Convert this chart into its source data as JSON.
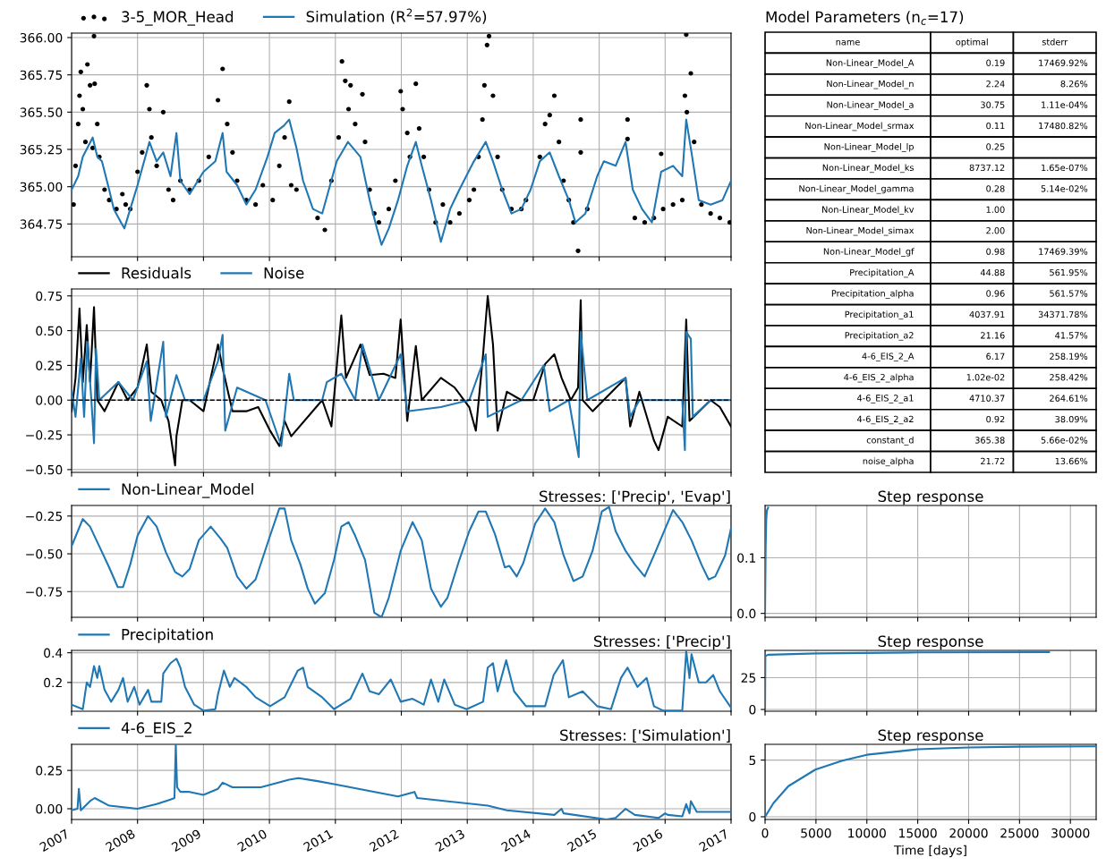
{
  "chart_data": [
    {
      "type": "line",
      "legend": "top left",
      "grid": true,
      "tick_labels": "y",
      "xlim": [
        2007,
        2017
      ],
      "xticks": [
        2007,
        2008,
        2009,
        2010,
        2011,
        2012,
        2013,
        2014,
        2015,
        2016,
        2017
      ],
      "ylim": [
        364.53,
        366.03
      ],
      "yticks": [
        {
          "value": 364.75,
          "label": "364.75"
        },
        {
          "value": 365,
          "label": "365.00"
        },
        {
          "value": 365.25,
          "label": "365.25"
        },
        {
          "value": 365.5,
          "label": "365.50"
        },
        {
          "value": 365.75,
          "label": "365.75"
        },
        {
          "value": 366,
          "label": "366.00"
        }
      ],
      "series": [
        {
          "name": "3-5_MOR_Head",
          "type": "scatter",
          "marker": "circle",
          "color": "#000000",
          "x": [
            2007.03,
            2007.06,
            2007.1,
            2007.12,
            2007.14,
            2007.17,
            2007.21,
            2007.24,
            2007.28,
            2007.32,
            2007.34,
            2007.35,
            2007.39,
            2007.42,
            2007.5,
            2007.57,
            2007.68,
            2007.77,
            2007.82,
            2007.89,
            2008.0,
            2008.07,
            2008.14,
            2008.18,
            2008.21,
            2008.29,
            2008.39,
            2008.47,
            2008.54,
            2008.65,
            2008.79,
            2008.93,
            2009.08,
            2009.22,
            2009.29,
            2009.36,
            2009.44,
            2009.51,
            2009.65,
            2009.79,
            2009.9,
            2010.05,
            2010.15,
            2010.23,
            2010.3,
            2010.33,
            2010.41,
            2010.73,
            2010.84,
            2010.94,
            2011.05,
            2011.1,
            2011.15,
            2011.2,
            2011.23,
            2011.3,
            2011.41,
            2011.45,
            2011.52,
            2011.59,
            2011.66,
            2011.81,
            2011.91,
            2011.99,
            2012.02,
            2012.09,
            2012.13,
            2012.22,
            2012.27,
            2012.34,
            2012.42,
            2012.52,
            2012.63,
            2012.74,
            2012.88,
            2013.03,
            2013.1,
            2013.17,
            2013.23,
            2013.26,
            2013.3,
            2013.33,
            2013.39,
            2013.46,
            2013.53,
            2013.67,
            2013.82,
            2013.89,
            2014.1,
            2014.18,
            2014.25,
            2014.32,
            2014.39,
            2014.46,
            2014.54,
            2014.61,
            2014.68,
            2014.72,
            2014.72,
            2014.82,
            2015.43,
            2015.43,
            2015.54,
            2015.69,
            2015.83,
            2015.94,
            2015.97,
            2016.12,
            2016.26,
            2016.3,
            2016.32,
            2016.33,
            2016.39,
            2016.44,
            2016.55,
            2016.69,
            2016.83,
            2016.98
          ],
          "values": [
            364.88,
            365.14,
            365.42,
            365.61,
            365.77,
            365.52,
            365.3,
            365.82,
            365.68,
            365.26,
            366.01,
            365.69,
            365.42,
            365.2,
            364.98,
            364.91,
            364.85,
            364.95,
            364.88,
            364.85,
            365.1,
            365.23,
            365.68,
            365.52,
            365.33,
            365.14,
            365.5,
            364.98,
            364.91,
            365.04,
            364.98,
            365.04,
            365.2,
            365.58,
            365.79,
            365.42,
            365.23,
            365.04,
            364.91,
            364.88,
            365.01,
            364.91,
            365.14,
            365.33,
            365.57,
            365.01,
            364.98,
            364.79,
            364.71,
            365.04,
            365.33,
            365.84,
            365.71,
            365.52,
            365.68,
            365.42,
            365.62,
            365.3,
            364.98,
            364.82,
            364.76,
            364.85,
            365.04,
            365.64,
            365.52,
            365.36,
            365.2,
            365.69,
            365.39,
            365.2,
            364.98,
            364.76,
            364.88,
            364.76,
            364.82,
            364.91,
            364.98,
            365.2,
            365.45,
            365.68,
            365.95,
            366.01,
            365.61,
            365.2,
            364.98,
            364.85,
            364.85,
            364.91,
            365.2,
            365.42,
            365.48,
            365.61,
            365.3,
            365.04,
            364.91,
            364.76,
            364.57,
            365.45,
            365.23,
            364.85,
            365.45,
            365.32,
            364.79,
            364.76,
            364.79,
            365.22,
            364.85,
            364.88,
            364.91,
            365.61,
            366.02,
            365.5,
            365.76,
            365.3,
            364.88,
            364.82,
            364.79,
            364.76
          ]
        },
        {
          "name": "Simulation (R$^{2}$=57.97%)",
          "type": "line",
          "color": "#1f77b4",
          "x": [
            2007.0,
            2007.1,
            2007.17,
            2007.32,
            2007.39,
            2007.46,
            2007.57,
            2007.64,
            2007.75,
            2007.8,
            2007.89,
            2008.0,
            2008.18,
            2008.29,
            2008.39,
            2008.5,
            2008.59,
            2008.65,
            2008.79,
            2009.0,
            2009.18,
            2009.29,
            2009.35,
            2009.51,
            2009.65,
            2009.79,
            2009.97,
            2010.08,
            2010.22,
            2010.3,
            2010.41,
            2010.51,
            2010.66,
            2010.8,
            2011.02,
            2011.19,
            2011.38,
            2011.52,
            2011.63,
            2011.7,
            2011.81,
            2011.95,
            2012.09,
            2012.22,
            2012.31,
            2012.45,
            2012.6,
            2012.74,
            2012.88,
            2013.1,
            2013.28,
            2013.39,
            2013.53,
            2013.67,
            2013.82,
            2013.96,
            2014.1,
            2014.25,
            2014.39,
            2014.54,
            2014.64,
            2014.79,
            2014.97,
            2015.07,
            2015.25,
            2015.4,
            2015.51,
            2015.65,
            2015.8,
            2015.94,
            2016.12,
            2016.26,
            2016.32,
            2016.4,
            2016.51,
            2016.69,
            2016.87,
            2017.0
          ],
          "values": [
            364.98,
            365.07,
            365.2,
            365.33,
            365.2,
            365.17,
            364.98,
            364.85,
            364.76,
            364.72,
            364.85,
            365.01,
            365.3,
            365.17,
            365.23,
            365.07,
            365.36,
            365.04,
            364.95,
            365.1,
            365.17,
            365.36,
            365.1,
            365.01,
            364.88,
            364.98,
            365.2,
            365.36,
            365.41,
            365.45,
            365.26,
            365.04,
            364.85,
            364.82,
            365.17,
            365.3,
            365.2,
            364.91,
            364.72,
            364.61,
            364.72,
            364.91,
            365.14,
            365.3,
            365.14,
            364.91,
            364.63,
            364.85,
            364.98,
            365.17,
            365.3,
            365.17,
            364.98,
            364.82,
            364.85,
            364.98,
            365.17,
            365.23,
            365.07,
            364.91,
            364.76,
            364.82,
            365.07,
            365.17,
            365.14,
            365.3,
            364.98,
            364.85,
            364.76,
            365.1,
            365.14,
            365.07,
            365.45,
            365.23,
            364.91,
            364.88,
            364.91,
            365.04
          ]
        }
      ]
    },
    {
      "type": "other",
      "title": "Model Parameters (n$_{c}$=17)",
      "categories": [
        "name",
        "optimal",
        "stderr"
      ],
      "cell_labels": [
        [
          "Non-Linear_Model_A",
          "0.19",
          "17469.92%"
        ],
        [
          "Non-Linear_Model_n",
          "2.24",
          "8.26%"
        ],
        [
          "Non-Linear_Model_a",
          "30.75",
          "1.11e-04%"
        ],
        [
          "Non-Linear_Model_srmax",
          "0.11",
          "17480.82%"
        ],
        [
          "Non-Linear_Model_lp",
          "0.25",
          null
        ],
        [
          "Non-Linear_Model_ks",
          "8737.12",
          "1.65e-07%"
        ],
        [
          "Non-Linear_Model_gamma",
          "0.28",
          "5.14e-02%"
        ],
        [
          "Non-Linear_Model_kv",
          "1.00",
          null
        ],
        [
          "Non-Linear_Model_simax",
          "2.00",
          null
        ],
        [
          "Non-Linear_Model_gf",
          "0.98",
          "17469.39%"
        ],
        [
          "Precipitation_A",
          "44.88",
          "561.95%"
        ],
        [
          "Precipitation_alpha",
          "0.96",
          "561.57%"
        ],
        [
          "Precipitation_a1",
          "4037.91",
          "34371.78%"
        ],
        [
          "Precipitation_a2",
          "21.16",
          "41.57%"
        ],
        [
          "4-6_EIS_2_A",
          "6.17",
          "258.19%"
        ],
        [
          "4-6_EIS_2_alpha",
          "1.02e-02",
          "258.42%"
        ],
        [
          "4-6_EIS_2_a1",
          "4710.37",
          "264.61%"
        ],
        [
          "4-6_EIS_2_a2",
          "0.92",
          "38.09%"
        ],
        [
          "constant_d",
          "365.38",
          "5.66e-02%"
        ],
        [
          "noise_alpha",
          "21.72",
          "13.66%"
        ]
      ]
    },
    {
      "type": "line",
      "legend": "top left",
      "grid": true,
      "tick_labels": "y",
      "xlim": [
        2007,
        2017
      ],
      "xticks": [
        2007,
        2008,
        2009,
        2010,
        2011,
        2012,
        2013,
        2014,
        2015,
        2016,
        2017
      ],
      "ylim": [
        -0.52,
        0.8
      ],
      "yticks": [
        {
          "value": -0.5,
          "label": "−0.50"
        },
        {
          "value": -0.25,
          "label": "−0.25"
        },
        {
          "value": 0,
          "label": "0.00"
        },
        {
          "value": 0.25,
          "label": "0.25"
        },
        {
          "value": 0.5,
          "label": "0.50"
        },
        {
          "value": 0.75,
          "label": "0.75"
        }
      ],
      "ref_lines": [
        {
          "axis": "y",
          "value": 0,
          "label": null,
          "color": "#000000",
          "line_style": "dashed"
        }
      ],
      "series": [
        {
          "name": "Residuals",
          "color": "#000000",
          "x": [
            2007.0,
            2007.06,
            2007.12,
            2007.17,
            2007.23,
            2007.28,
            2007.34,
            2007.39,
            2007.5,
            2007.71,
            2007.85,
            2008.0,
            2008.14,
            2008.21,
            2008.36,
            2008.47,
            2008.57,
            2008.59,
            2008.68,
            2008.79,
            2009.0,
            2009.22,
            2009.29,
            2009.44,
            2009.65,
            2009.83,
            2010.01,
            2010.15,
            2010.23,
            2010.33,
            2010.8,
            2010.94,
            2011.09,
            2011.16,
            2011.38,
            2011.52,
            2011.73,
            2011.91,
            2011.99,
            2012.09,
            2012.22,
            2012.31,
            2012.6,
            2012.81,
            2013.03,
            2013.13,
            2013.24,
            2013.31,
            2013.39,
            2013.46,
            2013.6,
            2013.82,
            2014.0,
            2014.18,
            2014.32,
            2014.43,
            2014.57,
            2014.68,
            2014.72,
            2014.75,
            2014.9,
            2015.4,
            2015.47,
            2015.61,
            2015.83,
            2015.9,
            2016.04,
            2016.26,
            2016.32,
            2016.37,
            2016.69,
            2016.83,
            2017.0
          ],
          "values": [
            -0.08,
            0.16,
            0.66,
            0.13,
            0.54,
            0.13,
            0.67,
            0.0,
            -0.08,
            0.13,
            0.0,
            0.09,
            0.4,
            0.06,
            0.0,
            -0.15,
            -0.47,
            -0.26,
            0.0,
            0.0,
            -0.08,
            0.4,
            0.23,
            -0.08,
            -0.08,
            -0.05,
            -0.22,
            -0.33,
            -0.15,
            -0.26,
            0.0,
            -0.19,
            0.61,
            0.16,
            0.4,
            0.18,
            0.19,
            0.16,
            0.58,
            -0.15,
            0.39,
            0.0,
            0.16,
            0.09,
            -0.05,
            -0.22,
            0.33,
            0.75,
            0.4,
            -0.22,
            0.06,
            0.0,
            0.0,
            0.26,
            0.33,
            0.16,
            0.0,
            0.09,
            0.72,
            0.0,
            -0.08,
            0.16,
            -0.19,
            0.06,
            -0.29,
            -0.36,
            -0.12,
            -0.19,
            0.58,
            -0.15,
            0.0,
            -0.05,
            -0.19
          ]
        },
        {
          "name": "Noise",
          "color": "#1f77b4",
          "x": [
            2007.0,
            2007.06,
            2007.14,
            2007.19,
            2007.24,
            2007.3,
            2007.34,
            2007.37,
            2007.42,
            2007.71,
            2007.93,
            2008.14,
            2008.2,
            2008.39,
            2008.43,
            2008.59,
            2008.72,
            2009.0,
            2009.22,
            2009.29,
            2009.33,
            2009.51,
            2009.94,
            2010.18,
            2010.3,
            2010.37,
            2010.8,
            2010.87,
            2011.09,
            2011.3,
            2011.41,
            2011.66,
            2011.99,
            2012.09,
            2012.6,
            2013.03,
            2013.28,
            2013.31,
            2013.82,
            2014.16,
            2014.25,
            2014.54,
            2014.69,
            2014.72,
            2014.82,
            2015.4,
            2015.47,
            2015.61,
            2016.26,
            2016.3,
            2016.32,
            2016.39,
            2016.42,
            2016.69,
            2017.0
          ],
          "values": [
            0.06,
            -0.12,
            0.3,
            -0.12,
            0.42,
            0.0,
            -0.31,
            0.37,
            0.0,
            0.13,
            0.0,
            0.28,
            -0.15,
            0.42,
            -0.12,
            0.18,
            0.0,
            0.0,
            0.28,
            0.47,
            -0.22,
            0.09,
            0.0,
            -0.33,
            0.19,
            0.0,
            0.0,
            0.13,
            0.19,
            0.0,
            0.4,
            0.0,
            0.33,
            -0.08,
            -0.05,
            0.0,
            0.33,
            -0.12,
            0.0,
            0.25,
            -0.08,
            0.0,
            -0.41,
            0.49,
            0.0,
            0.16,
            -0.12,
            0.0,
            0.0,
            -0.36,
            0.49,
            0.44,
            -0.12,
            0.0,
            0.0
          ]
        }
      ]
    },
    {
      "type": "line",
      "legend": "top left",
      "title": "Stresses: ['Precip', 'Evap']",
      "grid": true,
      "tick_labels": "y",
      "xlim": [
        2007,
        2017
      ],
      "xticks": [
        2007,
        2008,
        2009,
        2010,
        2011,
        2012,
        2013,
        2014,
        2015,
        2016,
        2017
      ],
      "ylim": [
        -0.92,
        -0.18
      ],
      "yticks": [
        {
          "value": -0.75,
          "label": "−0.75"
        },
        {
          "value": -0.5,
          "label": "−0.50"
        },
        {
          "value": -0.25,
          "label": "−0.25"
        }
      ],
      "series": [
        {
          "name": "Non-Linear_Model",
          "color": "#1f77b4",
          "x": [
            2007.0,
            2007.17,
            2007.28,
            2007.42,
            2007.57,
            2007.7,
            2007.78,
            2007.89,
            2008.0,
            2008.16,
            2008.29,
            2008.43,
            2008.57,
            2008.68,
            2008.79,
            2008.93,
            2009.11,
            2009.26,
            2009.36,
            2009.51,
            2009.65,
            2009.79,
            2010.01,
            2010.15,
            2010.23,
            2010.33,
            2010.47,
            2010.58,
            2010.69,
            2010.84,
            2010.98,
            2011.09,
            2011.2,
            2011.3,
            2011.45,
            2011.59,
            2011.7,
            2011.81,
            2011.99,
            2012.17,
            2012.31,
            2012.45,
            2012.6,
            2012.7,
            2012.88,
            2013.03,
            2013.17,
            2013.28,
            2013.42,
            2013.57,
            2013.64,
            2013.75,
            2013.85,
            2014.03,
            2014.18,
            2014.32,
            2014.46,
            2014.61,
            2014.75,
            2014.9,
            2015.04,
            2015.15,
            2015.25,
            2015.4,
            2015.54,
            2015.69,
            2015.86,
            2016.12,
            2016.26,
            2016.4,
            2016.55,
            2016.66,
            2016.76,
            2016.91,
            2017.0
          ],
          "values": [
            -0.45,
            -0.27,
            -0.32,
            -0.45,
            -0.59,
            -0.72,
            -0.72,
            -0.57,
            -0.38,
            -0.25,
            -0.32,
            -0.49,
            -0.62,
            -0.65,
            -0.6,
            -0.41,
            -0.32,
            -0.4,
            -0.46,
            -0.65,
            -0.73,
            -0.67,
            -0.38,
            -0.2,
            -0.2,
            -0.41,
            -0.57,
            -0.73,
            -0.83,
            -0.76,
            -0.54,
            -0.32,
            -0.29,
            -0.38,
            -0.54,
            -0.89,
            -0.92,
            -0.79,
            -0.48,
            -0.29,
            -0.41,
            -0.73,
            -0.85,
            -0.79,
            -0.54,
            -0.35,
            -0.22,
            -0.22,
            -0.37,
            -0.59,
            -0.58,
            -0.65,
            -0.56,
            -0.3,
            -0.2,
            -0.29,
            -0.51,
            -0.68,
            -0.65,
            -0.48,
            -0.22,
            -0.19,
            -0.35,
            -0.48,
            -0.57,
            -0.65,
            -0.48,
            -0.21,
            -0.29,
            -0.41,
            -0.57,
            -0.67,
            -0.65,
            -0.51,
            -0.33
          ]
        }
      ]
    },
    {
      "type": "line",
      "title": "Step response",
      "grid": true,
      "tick_labels": "y",
      "xlim": [
        0,
        32530
      ],
      "xticks": [
        0,
        5000,
        10000,
        15000,
        20000,
        25000,
        30000
      ],
      "ylim": [
        -0.007,
        0.194
      ],
      "yticks": [
        {
          "value": 0,
          "label": "0.0"
        },
        {
          "value": 0.1,
          "label": "0.1"
        }
      ],
      "series": [
        {
          "color": "#1f77b4",
          "x": [
            0,
            60,
            120,
            180,
            300
          ],
          "values": [
            0,
            0.12,
            0.17,
            0.185,
            0.19
          ]
        }
      ]
    },
    {
      "type": "line",
      "legend": "top left",
      "title": "Stresses: ['Precip']",
      "grid": true,
      "tick_labels": "y",
      "xlim": [
        2007,
        2017
      ],
      "xticks": [
        2007,
        2008,
        2009,
        2010,
        2011,
        2012,
        2013,
        2014,
        2015,
        2016,
        2017
      ],
      "ylim": [
        0.006,
        0.416
      ],
      "yticks": [
        0.2,
        0.4
      ],
      "series": [
        {
          "name": "Precipitation",
          "color": "#1f77b4",
          "x": [
            2007.0,
            2007.17,
            2007.23,
            2007.28,
            2007.34,
            2007.39,
            2007.42,
            2007.5,
            2007.6,
            2007.71,
            2007.78,
            2007.85,
            2007.95,
            2008.03,
            2008.16,
            2008.21,
            2008.36,
            2008.39,
            2008.5,
            2008.59,
            2008.65,
            2008.72,
            2008.86,
            2009.0,
            2009.18,
            2009.22,
            2009.31,
            2009.4,
            2009.47,
            2009.65,
            2009.79,
            2010.01,
            2010.23,
            2010.43,
            2010.51,
            2010.58,
            2010.8,
            2010.98,
            2011.23,
            2011.41,
            2011.52,
            2011.66,
            2011.84,
            2011.99,
            2012.17,
            2012.34,
            2012.45,
            2012.56,
            2012.65,
            2012.81,
            2012.99,
            2013.24,
            2013.31,
            2013.39,
            2013.46,
            2013.59,
            2013.71,
            2013.89,
            2014.18,
            2014.31,
            2014.45,
            2014.54,
            2014.75,
            2014.97,
            2015.18,
            2015.33,
            2015.43,
            2015.58,
            2015.72,
            2015.83,
            2015.97,
            2016.26,
            2016.32,
            2016.37,
            2016.4,
            2016.51,
            2016.62,
            2016.73,
            2016.83,
            2017.0
          ],
          "values": [
            0.05,
            0.02,
            0.2,
            0.17,
            0.31,
            0.23,
            0.31,
            0.15,
            0.07,
            0.15,
            0.23,
            0.07,
            0.17,
            0.05,
            0.15,
            0.07,
            0.07,
            0.26,
            0.33,
            0.36,
            0.3,
            0.17,
            0.05,
            0.01,
            0.02,
            0.12,
            0.28,
            0.17,
            0.23,
            0.17,
            0.1,
            0.04,
            0.1,
            0.28,
            0.3,
            0.17,
            0.1,
            0.02,
            0.09,
            0.26,
            0.14,
            0.12,
            0.22,
            0.07,
            0.09,
            0.05,
            0.22,
            0.07,
            0.22,
            0.05,
            0.02,
            0.07,
            0.3,
            0.33,
            0.14,
            0.35,
            0.14,
            0.04,
            0.04,
            0.25,
            0.35,
            0.1,
            0.14,
            0.04,
            0.02,
            0.23,
            0.3,
            0.17,
            0.23,
            0.04,
            0.01,
            0.01,
            0.41,
            0.23,
            0.39,
            0.2,
            0.2,
            0.25,
            0.14,
            0.03
          ]
        }
      ]
    },
    {
      "type": "line",
      "title": "Step response",
      "grid": true,
      "tick_labels": "y",
      "xlim": [
        0,
        32530
      ],
      "xticks": [
        0,
        5000,
        10000,
        15000,
        20000,
        25000,
        30000
      ],
      "ylim": [
        -1.4,
        46.4
      ],
      "yticks": [
        0,
        25
      ],
      "series": [
        {
          "color": "#1f77b4",
          "x": [
            0,
            30,
            300,
            5000,
            15000,
            27900
          ],
          "values": [
            0,
            42,
            43,
            44,
            44.8,
            45
          ]
        }
      ]
    },
    {
      "type": "line",
      "legend": "top left",
      "title": "Stresses: ['Simulation']",
      "grid": true,
      "xlim": [
        2007,
        2017
      ],
      "xticks": [
        2007,
        2008,
        2009,
        2010,
        2011,
        2012,
        2013,
        2014,
        2015,
        2016,
        2017
      ],
      "ylim": [
        -0.07,
        0.42
      ],
      "yticks": [
        {
          "value": 0,
          "label": "0.00"
        },
        {
          "value": 0.25,
          "label": "0.25"
        }
      ],
      "series": [
        {
          "name": "4-6_EIS_2",
          "color": "#1f77b4",
          "x": [
            2007.0,
            2007.09,
            2007.11,
            2007.14,
            2007.28,
            2007.35,
            2007.57,
            2008.0,
            2008.29,
            2008.5,
            2008.56,
            2008.58,
            2008.6,
            2008.65,
            2008.79,
            2009.0,
            2009.22,
            2009.29,
            2009.44,
            2009.87,
            2010.3,
            2010.44,
            2010.73,
            2010.98,
            2011.95,
            2012.2,
            2012.24,
            2013.31,
            2013.6,
            2014.32,
            2014.43,
            2014.46,
            2015.11,
            2015.25,
            2015.4,
            2015.54,
            2015.9,
            2016.0,
            2016.04,
            2016.26,
            2016.32,
            2016.37,
            2016.39,
            2016.48,
            2017.0
          ],
          "values": [
            -0.01,
            0.0,
            0.13,
            -0.01,
            0.05,
            0.07,
            0.02,
            0.0,
            0.03,
            0.06,
            0.07,
            0.42,
            0.14,
            0.11,
            0.11,
            0.09,
            0.13,
            0.17,
            0.14,
            0.14,
            0.19,
            0.2,
            0.18,
            0.16,
            0.08,
            0.11,
            0.07,
            0.02,
            -0.01,
            -0.04,
            0.0,
            -0.03,
            -0.07,
            -0.06,
            0.0,
            -0.04,
            -0.06,
            -0.03,
            -0.04,
            -0.05,
            0.03,
            -0.03,
            0.05,
            -0.02,
            -0.02
          ]
        }
      ]
    },
    {
      "type": "line",
      "title": "Step response",
      "xlabel": "Time [days]",
      "grid": true,
      "xlim": [
        0,
        32530
      ],
      "xticks": [
        0,
        5000,
        10000,
        15000,
        20000,
        25000,
        30000
      ],
      "ylim": [
        -0.24,
        6.39
      ],
      "yticks": [
        0,
        5
      ],
      "series": [
        {
          "color": "#1f77b4",
          "x": [
            0,
            820,
            2290,
            4940,
            7590,
            10000,
            15000,
            20000,
            25000,
            32530
          ],
          "values": [
            0,
            1.2,
            2.7,
            4.16,
            4.95,
            5.47,
            5.95,
            6.12,
            6.18,
            6.21
          ]
        }
      ]
    }
  ]
}
